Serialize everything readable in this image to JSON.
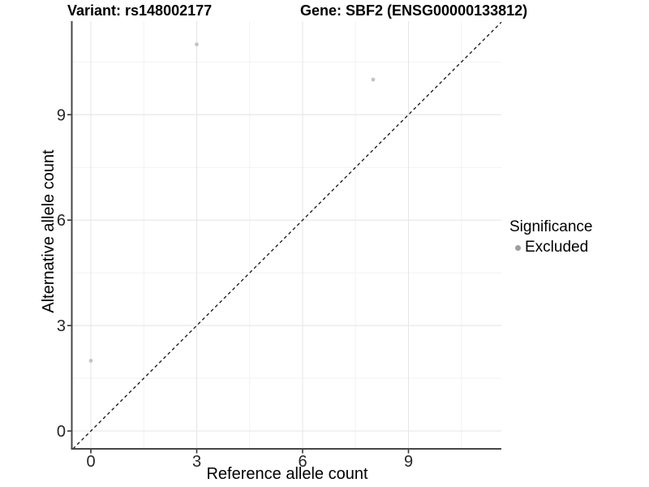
{
  "chart_data": {
    "type": "scatter",
    "titles": {
      "left": "Variant: rs148002177",
      "right": "Gene: SBF2 (ENSG00000133812)"
    },
    "xlabel": "Reference allele count",
    "ylabel": "Alternative allele count",
    "xlim": [
      -0.55,
      11.65
    ],
    "ylim": [
      -0.55,
      11.65
    ],
    "xticks": [
      0,
      3,
      6,
      9
    ],
    "yticks": [
      0,
      3,
      6,
      9
    ],
    "minor_xticks": [
      1.5,
      4.5,
      7.5,
      10.5
    ],
    "minor_yticks": [
      1.5,
      4.5,
      7.5,
      10.5
    ],
    "grid": true,
    "series": [
      {
        "name": "Excluded",
        "color": "#c4c4c4",
        "points": [
          {
            "x": 0,
            "y": 2
          },
          {
            "x": 3,
            "y": 11
          },
          {
            "x": 8,
            "y": 10
          }
        ]
      }
    ],
    "reference_line": {
      "slope": 1,
      "intercept": 0,
      "style": "dashed",
      "color": "#111111"
    },
    "legend": {
      "title": "Significance",
      "position": "right",
      "items": [
        {
          "label": "Excluded",
          "color": "#9e9e9e"
        }
      ]
    },
    "colors": {
      "grid_major": "#e6e6e6",
      "grid_minor": "#f2f2f2",
      "axis_line": "#474747",
      "tick": "#333333",
      "tick_label": "#262626"
    }
  }
}
